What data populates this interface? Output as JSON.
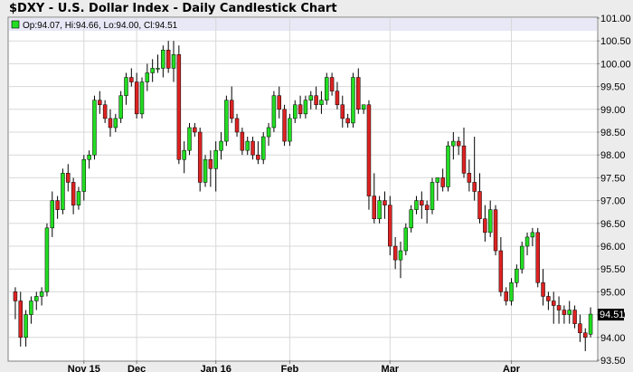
{
  "header": {
    "title": "$DXY - U.S. Dollar Index - Daily Candlestick Chart"
  },
  "legend": {
    "text": "Op:94.07, Hi:94.66, Lo:94.00, Cl:94.51"
  },
  "colors": {
    "background": "#ececec",
    "plot_background": "#ffffff",
    "legend_band": "#e8e8f6",
    "grid": "#d8d8d8",
    "up_candle": "#22dd22",
    "down_candle": "#dd2222",
    "wick": "#000000",
    "last_price_box": "#000000"
  },
  "chart_data": {
    "type": "candlestick",
    "title": "$DXY - U.S. Dollar Index - Daily Candlestick Chart",
    "ylim": [
      93.5,
      101.0
    ],
    "y_ticks": [
      93.5,
      94.0,
      94.5,
      95.0,
      95.5,
      96.0,
      96.5,
      97.0,
      97.5,
      98.0,
      98.5,
      99.0,
      99.5,
      100.0,
      100.5,
      101.0
    ],
    "y_tick_labels": [
      "93.50",
      "94.00",
      "94.50",
      "95.00",
      "95.50",
      "96.00",
      "96.50",
      "97.00",
      "97.50",
      "98.00",
      "98.50",
      "99.00",
      "99.50",
      "100.00",
      "100.50",
      "101.00"
    ],
    "x_ticks": [
      {
        "label": "Nov 15",
        "index": 13
      },
      {
        "label": "Dec",
        "index": 23
      },
      {
        "label": "Jan 16",
        "index": 38
      },
      {
        "label": "Feb",
        "index": 52
      },
      {
        "label": "Mar",
        "index": 71
      },
      {
        "label": "Apr",
        "index": 94
      }
    ],
    "grid": true,
    "y_axis_side": "right",
    "last_price": "94.51",
    "candles": [
      [
        95.0,
        95.1,
        94.4,
        94.8
      ],
      [
        94.8,
        95.0,
        93.8,
        94.0
      ],
      [
        94.0,
        94.6,
        93.8,
        94.5
      ],
      [
        94.5,
        94.9,
        94.3,
        94.8
      ],
      [
        94.8,
        95.0,
        94.6,
        94.9
      ],
      [
        94.9,
        95.1,
        94.7,
        95.0
      ],
      [
        95.0,
        96.5,
        94.9,
        96.4
      ],
      [
        96.4,
        97.2,
        96.2,
        97.0
      ],
      [
        97.0,
        97.1,
        96.6,
        96.8
      ],
      [
        96.8,
        97.7,
        96.7,
        97.6
      ],
      [
        97.6,
        97.8,
        97.2,
        97.4
      ],
      [
        97.4,
        97.5,
        96.7,
        96.9
      ],
      [
        96.9,
        97.3,
        96.8,
        97.2
      ],
      [
        97.2,
        98.0,
        97.0,
        97.9
      ],
      [
        97.9,
        98.1,
        97.7,
        98.0
      ],
      [
        98.0,
        99.3,
        97.9,
        99.2
      ],
      [
        99.2,
        99.4,
        98.9,
        99.1
      ],
      [
        99.1,
        99.2,
        98.7,
        98.8
      ],
      [
        98.8,
        99.0,
        98.4,
        98.6
      ],
      [
        98.6,
        98.9,
        98.5,
        98.8
      ],
      [
        98.8,
        99.4,
        98.7,
        99.3
      ],
      [
        99.3,
        99.8,
        99.1,
        99.7
      ],
      [
        99.7,
        99.9,
        99.5,
        99.6
      ],
      [
        99.6,
        99.8,
        98.8,
        98.9
      ],
      [
        98.9,
        99.7,
        98.8,
        99.6
      ],
      [
        99.6,
        100.0,
        99.4,
        99.8
      ],
      [
        99.8,
        100.1,
        99.6,
        99.9
      ],
      [
        99.9,
        100.2,
        99.8,
        99.9
      ],
      [
        99.9,
        100.4,
        99.7,
        100.3
      ],
      [
        100.3,
        100.5,
        99.8,
        99.9
      ],
      [
        99.9,
        100.5,
        99.6,
        100.2
      ],
      [
        100.2,
        100.4,
        97.8,
        97.9
      ],
      [
        97.9,
        98.3,
        97.6,
        98.1
      ],
      [
        98.1,
        98.7,
        98.0,
        98.6
      ],
      [
        98.6,
        98.7,
        98.4,
        98.5
      ],
      [
        98.5,
        98.6,
        97.2,
        97.4
      ],
      [
        97.4,
        98.0,
        97.3,
        97.9
      ],
      [
        97.9,
        98.1,
        97.3,
        97.7
      ],
      [
        97.7,
        98.3,
        97.2,
        98.1
      ],
      [
        98.1,
        98.5,
        97.9,
        98.3
      ],
      [
        98.3,
        99.3,
        98.2,
        99.2
      ],
      [
        99.2,
        99.5,
        98.7,
        98.8
      ],
      [
        98.8,
        98.9,
        98.4,
        98.5
      ],
      [
        98.5,
        98.6,
        98.0,
        98.1
      ],
      [
        98.1,
        98.4,
        98.0,
        98.3
      ],
      [
        98.3,
        98.4,
        97.9,
        98.0
      ],
      [
        98.0,
        98.3,
        97.8,
        97.9
      ],
      [
        97.9,
        98.5,
        97.8,
        98.4
      ],
      [
        98.4,
        98.7,
        98.2,
        98.6
      ],
      [
        98.6,
        99.4,
        98.5,
        99.3
      ],
      [
        99.3,
        99.5,
        98.8,
        99.0
      ],
      [
        99.0,
        99.1,
        98.2,
        98.3
      ],
      [
        98.3,
        98.9,
        98.2,
        98.8
      ],
      [
        98.8,
        99.2,
        98.7,
        99.1
      ],
      [
        99.1,
        99.3,
        98.8,
        98.9
      ],
      [
        98.9,
        99.3,
        98.8,
        99.2
      ],
      [
        99.2,
        99.4,
        99.0,
        99.3
      ],
      [
        99.3,
        99.5,
        99.0,
        99.1
      ],
      [
        99.1,
        99.4,
        98.9,
        99.2
      ],
      [
        99.2,
        99.8,
        99.1,
        99.7
      ],
      [
        99.7,
        99.8,
        99.3,
        99.4
      ],
      [
        99.4,
        99.6,
        99.0,
        99.1
      ],
      [
        99.1,
        99.3,
        98.6,
        98.8
      ],
      [
        98.8,
        98.9,
        98.6,
        98.7
      ],
      [
        98.7,
        99.8,
        98.6,
        99.7
      ],
      [
        99.7,
        99.9,
        98.9,
        99.0
      ],
      [
        99.0,
        99.1,
        98.9,
        99.1
      ],
      [
        99.1,
        99.2,
        96.8,
        97.1
      ],
      [
        97.1,
        97.6,
        96.5,
        96.6
      ],
      [
        96.6,
        97.1,
        96.5,
        97.0
      ],
      [
        97.0,
        97.2,
        96.6,
        96.9
      ],
      [
        96.9,
        97.1,
        95.8,
        96.0
      ],
      [
        96.0,
        96.2,
        95.5,
        95.7
      ],
      [
        95.7,
        96.1,
        95.3,
        95.9
      ],
      [
        95.9,
        96.5,
        95.8,
        96.4
      ],
      [
        96.4,
        96.9,
        96.3,
        96.8
      ],
      [
        96.8,
        97.1,
        96.7,
        97.0
      ],
      [
        97.0,
        97.2,
        96.6,
        96.9
      ],
      [
        96.9,
        97.0,
        96.5,
        96.8
      ],
      [
        96.8,
        97.5,
        96.7,
        97.4
      ],
      [
        97.4,
        97.5,
        97.0,
        97.5
      ],
      [
        97.5,
        97.7,
        97.2,
        97.3
      ],
      [
        97.3,
        98.3,
        97.2,
        98.2
      ],
      [
        98.2,
        98.5,
        97.9,
        98.3
      ],
      [
        98.3,
        98.4,
        98.0,
        98.2
      ],
      [
        98.2,
        98.6,
        97.5,
        97.6
      ],
      [
        97.6,
        97.9,
        97.2,
        97.4
      ],
      [
        97.4,
        98.4,
        97.0,
        97.2
      ],
      [
        97.2,
        97.6,
        96.5,
        96.6
      ],
      [
        96.6,
        96.9,
        96.1,
        96.3
      ],
      [
        96.3,
        97.0,
        96.2,
        96.8
      ],
      [
        96.8,
        96.9,
        95.8,
        95.9
      ],
      [
        95.9,
        96.2,
        94.9,
        95.0
      ],
      [
        95.0,
        95.1,
        94.7,
        94.8
      ],
      [
        94.8,
        95.3,
        94.7,
        95.2
      ],
      [
        95.2,
        95.6,
        95.1,
        95.5
      ],
      [
        95.5,
        96.1,
        95.4,
        96.0
      ],
      [
        96.0,
        96.3,
        95.8,
        96.2
      ],
      [
        96.2,
        96.4,
        96.0,
        96.3
      ],
      [
        96.3,
        96.4,
        95.1,
        95.2
      ],
      [
        95.2,
        95.5,
        94.7,
        94.9
      ],
      [
        94.9,
        95.0,
        94.6,
        94.8
      ],
      [
        94.8,
        95.0,
        94.3,
        94.7
      ],
      [
        94.7,
        94.9,
        94.3,
        94.6
      ],
      [
        94.6,
        94.7,
        94.3,
        94.5
      ],
      [
        94.5,
        94.8,
        94.3,
        94.6
      ],
      [
        94.6,
        94.7,
        94.2,
        94.3
      ],
      [
        94.3,
        94.5,
        93.9,
        94.1
      ],
      [
        94.1,
        94.2,
        93.7,
        94.0
      ],
      [
        94.07,
        94.66,
        94.0,
        94.51
      ]
    ]
  }
}
